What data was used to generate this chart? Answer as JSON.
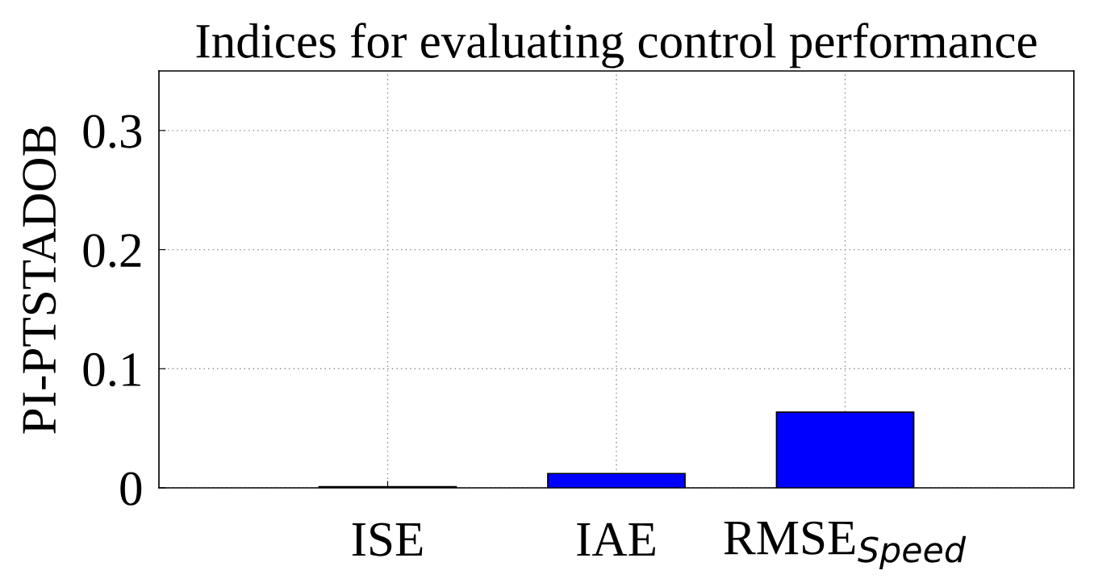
{
  "chart_data": {
    "type": "bar",
    "title": "Indices for evaluating control performance",
    "ylabel": "PI-PTSTADOB",
    "categories": [
      "ISE",
      "IAE",
      "RMSE$_{Speed}$"
    ],
    "values": [
      0.001,
      0.012,
      0.0635
    ],
    "color": "#0000ff",
    "ylim": [
      0,
      0.35
    ],
    "yticks": [
      {
        "value": 0,
        "label": "0"
      },
      0.1,
      0.2,
      0.3
    ],
    "grid": true
  }
}
